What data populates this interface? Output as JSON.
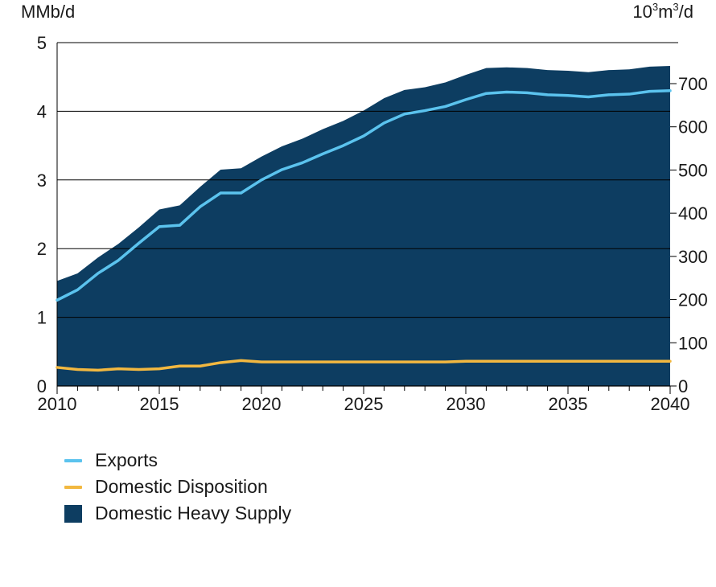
{
  "chart_data": {
    "type": "area",
    "left_axis_label": "MMb/d",
    "right_axis_label_base": "10",
    "right_axis_label_sup": "3",
    "right_axis_label_mid": "m",
    "right_axis_label_sup2": "3",
    "right_axis_label_end": "/d",
    "ylim": [
      0,
      5
    ],
    "y_ticks": [
      "0",
      "1",
      "2",
      "3",
      "4",
      "5"
    ],
    "y_right_ticks": [
      "0",
      "100",
      "200",
      "300",
      "400",
      "500",
      "600",
      "700"
    ],
    "y_right_tick_values": [
      0,
      100,
      200,
      300,
      400,
      500,
      600,
      700
    ],
    "right_conversion_m3_per_mmb": 158.987,
    "x_ticks": [
      "2010",
      "2015",
      "2020",
      "2025",
      "2030",
      "2035",
      "2040"
    ],
    "x_tick_values": [
      2010,
      2015,
      2020,
      2025,
      2030,
      2035,
      2040
    ],
    "x": [
      2010,
      2011,
      2012,
      2013,
      2014,
      2015,
      2016,
      2017,
      2018,
      2019,
      2020,
      2021,
      2022,
      2023,
      2024,
      2025,
      2026,
      2027,
      2028,
      2029,
      2030,
      2031,
      2032,
      2033,
      2034,
      2035,
      2036,
      2037,
      2038,
      2039,
      2040
    ],
    "xlim": [
      2010,
      2040
    ],
    "series": [
      {
        "name": "Domestic Heavy Supply",
        "kind": "area",
        "color": "#0d3d61",
        "values": [
          1.53,
          1.64,
          1.87,
          2.07,
          2.31,
          2.57,
          2.63,
          2.9,
          3.15,
          3.17,
          3.34,
          3.49,
          3.6,
          3.74,
          3.86,
          4.01,
          4.19,
          4.31,
          4.35,
          4.42,
          4.53,
          4.63,
          4.64,
          4.63,
          4.6,
          4.59,
          4.57,
          4.6,
          4.61,
          4.65,
          4.66
        ]
      },
      {
        "name": "Exports",
        "kind": "line",
        "color": "#5bc3ee",
        "values": [
          1.25,
          1.4,
          1.64,
          1.83,
          2.08,
          2.32,
          2.34,
          2.61,
          2.81,
          2.81,
          3.0,
          3.15,
          3.25,
          3.38,
          3.5,
          3.64,
          3.83,
          3.96,
          4.01,
          4.07,
          4.17,
          4.26,
          4.28,
          4.27,
          4.24,
          4.23,
          4.21,
          4.24,
          4.25,
          4.29,
          4.3
        ]
      },
      {
        "name": "Domestic Disposition",
        "kind": "line",
        "color": "#f2b840",
        "values": [
          0.27,
          0.24,
          0.23,
          0.25,
          0.24,
          0.25,
          0.29,
          0.29,
          0.34,
          0.37,
          0.35,
          0.35,
          0.35,
          0.35,
          0.35,
          0.35,
          0.35,
          0.35,
          0.35,
          0.35,
          0.36,
          0.36,
          0.36,
          0.36,
          0.36,
          0.36,
          0.36,
          0.36,
          0.36,
          0.36,
          0.36
        ]
      }
    ],
    "grid": true,
    "legend_position": "bottom-left",
    "legend": [
      "Exports",
      "Domestic Disposition",
      "Domestic Heavy Supply"
    ]
  },
  "colors": {
    "area": "#0d3d61",
    "exports": "#5bc3ee",
    "domestic": "#f2b840",
    "grid": "#000000"
  }
}
